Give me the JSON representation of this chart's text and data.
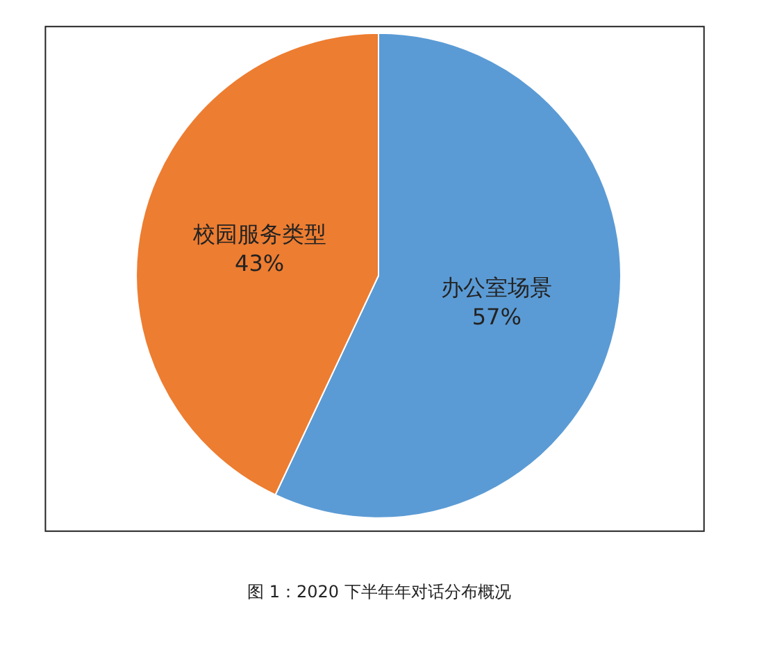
{
  "chart_data": {
    "type": "pie",
    "categories": [
      "办公室场景",
      "校园服务类型"
    ],
    "values": [
      57,
      43
    ],
    "colors": [
      "#5b9bd5",
      "#ed7d31"
    ],
    "value_labels": [
      "57%",
      "43%"
    ],
    "annotations": [
      "图 1：2020 下半年年对话分布概况"
    ]
  }
}
